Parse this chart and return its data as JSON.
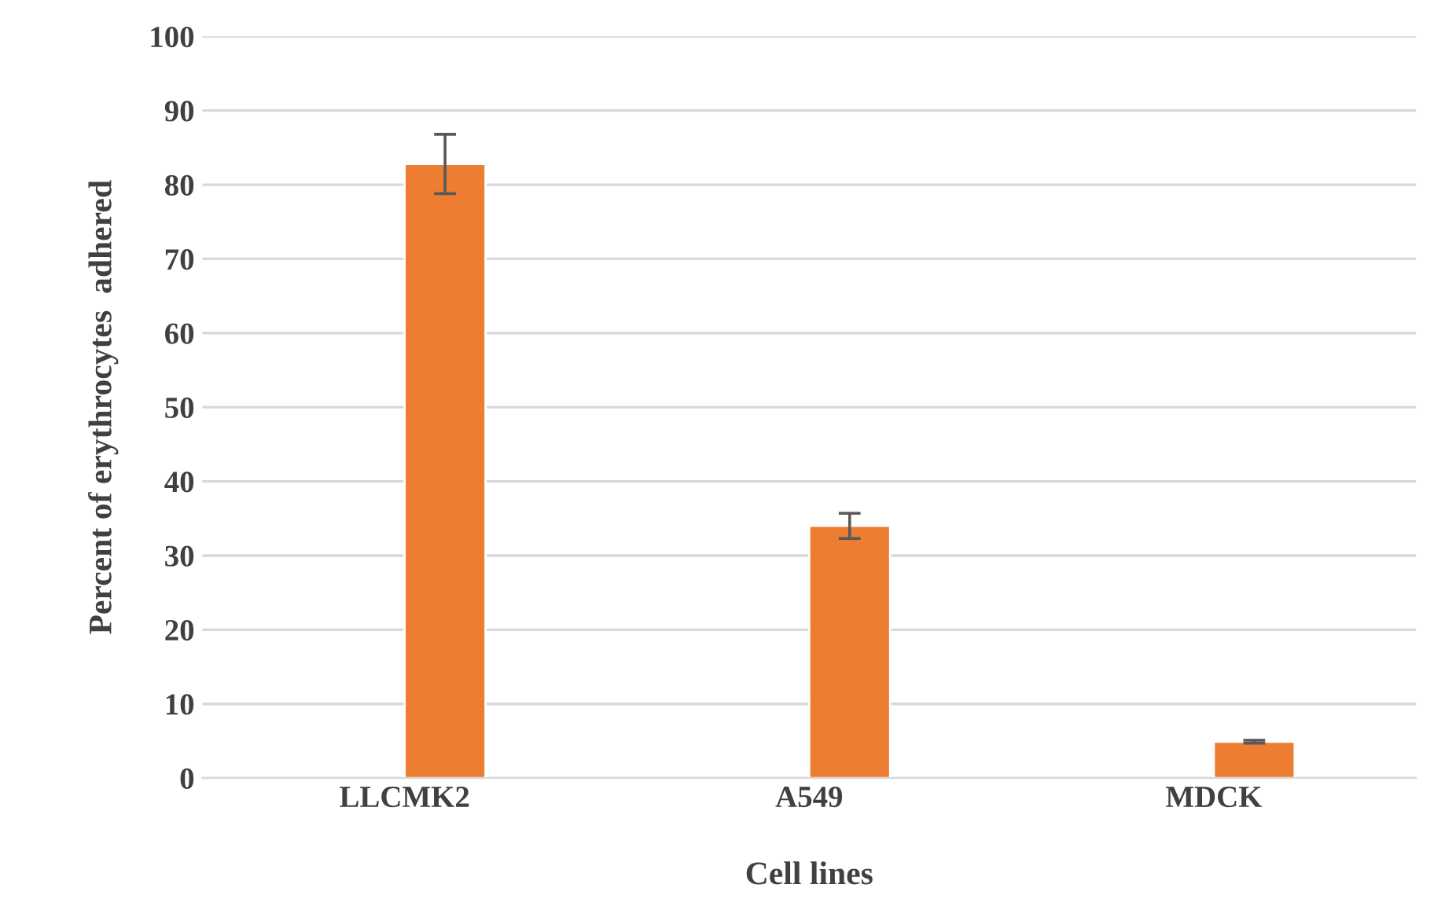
{
  "chart_data": {
    "type": "bar",
    "xlabel": "Cell lines",
    "ylabel": "Percent of erythrocytes  adhered",
    "categories": [
      "LLCMK2",
      "A549",
      "MDCK"
    ],
    "series": [
      {
        "color": "#4472c4",
        "values": [
          null,
          null,
          null
        ]
      },
      {
        "color": "#ed7d31",
        "values": [
          82.8,
          34.0,
          4.9
        ],
        "errors": [
          4.0,
          1.7,
          0.2
        ]
      }
    ],
    "ylim": [
      0,
      100
    ],
    "yticks": [
      0,
      10,
      20,
      30,
      40,
      50,
      60,
      70,
      80,
      90,
      100
    ],
    "grid": "y"
  }
}
